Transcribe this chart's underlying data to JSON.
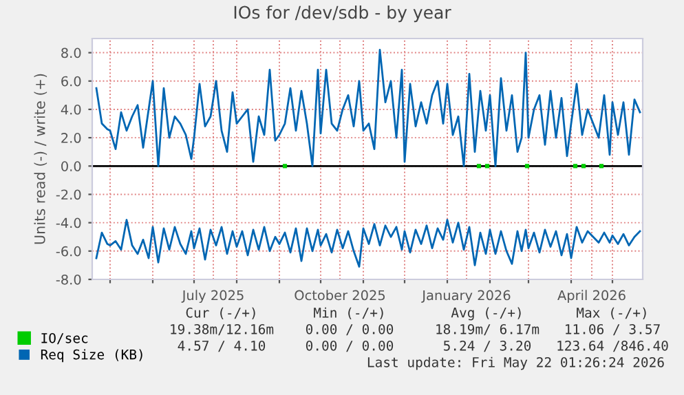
{
  "chart_data": {
    "type": "line",
    "title": "IOs for /dev/sdb - by year",
    "ylabel": "Units read (-) / write (+)",
    "x": [
      "2025-04-21",
      "2025-04-25",
      "2025-04-29",
      "2025-05-01",
      "2025-05-05",
      "2025-05-09",
      "2025-05-13",
      "2025-05-17",
      "2025-05-21",
      "2025-05-25",
      "2025-05-29",
      "2025-06-01",
      "2025-06-05",
      "2025-06-09",
      "2025-06-13",
      "2025-06-17",
      "2025-06-21",
      "2025-06-25",
      "2025-06-29",
      "2025-07-01",
      "2025-07-05",
      "2025-07-09",
      "2025-07-13",
      "2025-07-17",
      "2025-07-21",
      "2025-07-25",
      "2025-07-29",
      "2025-08-01",
      "2025-08-05",
      "2025-08-09",
      "2025-08-13",
      "2025-08-17",
      "2025-08-21",
      "2025-08-25",
      "2025-08-29",
      "2025-09-01",
      "2025-09-05",
      "2025-09-09",
      "2025-09-13",
      "2025-09-17",
      "2025-09-21",
      "2025-09-25",
      "2025-09-29",
      "2025-10-01",
      "2025-10-05",
      "2025-10-09",
      "2025-10-13",
      "2025-10-17",
      "2025-10-21",
      "2025-10-25",
      "2025-10-29",
      "2025-11-01",
      "2025-11-05",
      "2025-11-09",
      "2025-11-13",
      "2025-11-17",
      "2025-11-21",
      "2025-11-25",
      "2025-11-29",
      "2025-12-01",
      "2025-12-05",
      "2025-12-09",
      "2025-12-13",
      "2025-12-17",
      "2025-12-21",
      "2025-12-25",
      "2025-12-29",
      "2026-01-01",
      "2026-01-05",
      "2026-01-09",
      "2026-01-13",
      "2026-01-17",
      "2026-01-21",
      "2026-01-25",
      "2026-01-29",
      "2026-02-01",
      "2026-02-05",
      "2026-02-09",
      "2026-02-13",
      "2026-02-17",
      "2026-02-21",
      "2026-02-24",
      "2026-02-27",
      "2026-03-01",
      "2026-03-05",
      "2026-03-09",
      "2026-03-13",
      "2026-03-17",
      "2026-03-21",
      "2026-03-25",
      "2026-03-29",
      "2026-04-01",
      "2026-04-05",
      "2026-04-09",
      "2026-04-13",
      "2026-04-17",
      "2026-04-21",
      "2026-04-25",
      "2026-04-29",
      "2026-05-01",
      "2026-05-05",
      "2026-05-09",
      "2026-05-13",
      "2026-05-17",
      "2026-05-21"
    ],
    "series": [
      {
        "name": "IO/sec",
        "color": "#00cc00",
        "type": "scatter",
        "marker": "square",
        "x": [
          "2025-09-05",
          "2026-01-24",
          "2026-01-30",
          "2026-02-28",
          "2026-04-04",
          "2026-04-10",
          "2026-04-23"
        ],
        "values": [
          0,
          0,
          0,
          0,
          0,
          0,
          0
        ]
      },
      {
        "name": "Req Size (KB)",
        "color": "#0066b3",
        "values": [
          5.5,
          3.0,
          2.6,
          2.5,
          1.2,
          3.8,
          2.5,
          3.5,
          4.3,
          1.3,
          4.0,
          6.0,
          0.0,
          5.5,
          2.0,
          3.5,
          3.0,
          2.2,
          0.5,
          2.0,
          5.8,
          2.8,
          3.5,
          6.0,
          2.5,
          1.0,
          5.2,
          3.0,
          3.5,
          4.0,
          0.3,
          3.5,
          2.2,
          6.8,
          1.8,
          2.2,
          3.0,
          5.5,
          2.5,
          5.3,
          3.0,
          0.0,
          6.8,
          2.3,
          6.8,
          3.0,
          2.5,
          4.0,
          5.0,
          2.8,
          6.0,
          2.5,
          3.0,
          1.2,
          8.2,
          4.5,
          6.0,
          2.0,
          6.8,
          0.3,
          5.8,
          2.8,
          4.5,
          3.0,
          5.0,
          6.0,
          3.0,
          5.8,
          2.2,
          3.5,
          0.0,
          6.5,
          1.0,
          5.3,
          2.5,
          5.0,
          0.0,
          6.2,
          2.5,
          5.0,
          1.0,
          2.0,
          8.0,
          2.0,
          4.0,
          5.0,
          1.5,
          5.3,
          2.0,
          4.8,
          0.7,
          3.0,
          5.8,
          2.2,
          4.0,
          3.0,
          2.0,
          5.0,
          0.8,
          4.5,
          2.2,
          4.5,
          0.8,
          4.7,
          3.8
        ]
      },
      {
        "color": "#0066b3",
        "values": [
          -6.5,
          -4.7,
          -5.5,
          -5.6,
          -5.3,
          -5.9,
          -3.8,
          -5.6,
          -6.2,
          -5.2,
          -6.5,
          -4.3,
          -6.8,
          -4.4,
          -5.9,
          -4.3,
          -5.5,
          -6.2,
          -4.6,
          -5.8,
          -4.4,
          -6.6,
          -4.5,
          -5.6,
          -4.3,
          -6.2,
          -4.6,
          -5.7,
          -4.6,
          -6.3,
          -4.5,
          -5.9,
          -4.3,
          -6.0,
          -5.0,
          -5.5,
          -4.7,
          -6.1,
          -4.4,
          -6.7,
          -4.4,
          -6.0,
          -4.5,
          -5.6,
          -4.8,
          -6.1,
          -4.5,
          -5.8,
          -4.6,
          -6.0,
          -7.1,
          -4.4,
          -5.5,
          -4.1,
          -5.6,
          -4.2,
          -5.0,
          -4.3,
          -5.9,
          -4.6,
          -6.1,
          -4.5,
          -5.5,
          -4.2,
          -5.8,
          -4.4,
          -5.2,
          -3.8,
          -5.4,
          -4.0,
          -5.9,
          -4.3,
          -7.0,
          -4.7,
          -6.2,
          -4.5,
          -6.2,
          -4.6,
          -6.0,
          -6.9,
          -4.6,
          -6.0,
          -4.5,
          -5.8,
          -4.7,
          -6.1,
          -4.5,
          -5.7,
          -4.6,
          -6.3,
          -4.8,
          -6.5,
          -4.3,
          -5.4,
          -4.6,
          -5.0,
          -5.4,
          -4.7,
          -5.4,
          -4.9,
          -5.5,
          -4.8,
          -5.6,
          -5.0,
          -4.6
        ]
      }
    ],
    "xlim": [
      "2025-04-18",
      "2026-05-23"
    ],
    "xticks": [
      {
        "value": "2025-05-01",
        "label": null
      },
      {
        "value": "2025-06-01",
        "label": null
      },
      {
        "value": "2025-07-01",
        "label": null
      },
      {
        "value": "2025-07-15",
        "label": "July 2025"
      },
      {
        "value": "2025-08-01",
        "label": null
      },
      {
        "value": "2025-09-01",
        "label": null
      },
      {
        "value": "2025-10-01",
        "label": null
      },
      {
        "value": "2025-10-15",
        "label": "October 2025"
      },
      {
        "value": "2025-11-01",
        "label": null
      },
      {
        "value": "2025-12-01",
        "label": null
      },
      {
        "value": "2026-01-01",
        "label": null
      },
      {
        "value": "2026-01-15",
        "label": "January 2026"
      },
      {
        "value": "2026-02-01",
        "label": null
      },
      {
        "value": "2026-03-01",
        "label": null
      },
      {
        "value": "2026-04-01",
        "label": null
      },
      {
        "value": "2026-04-16",
        "label": "April 2026"
      },
      {
        "value": "2026-05-01",
        "label": null
      }
    ],
    "ylim": [
      -8,
      9
    ],
    "yticks": [
      {
        "value": -8,
        "label": "-8.0"
      },
      {
        "value": -6,
        "label": "-6.0"
      },
      {
        "value": -4,
        "label": "-4.0"
      },
      {
        "value": -2,
        "label": "-2.0"
      },
      {
        "value": 0,
        "label": "0.0"
      },
      {
        "value": 2,
        "label": "2.0"
      },
      {
        "value": 4,
        "label": "4.0"
      },
      {
        "value": 6,
        "label": "6.0"
      },
      {
        "value": 8,
        "label": "8.0"
      }
    ],
    "ref_lines": [
      {
        "axis": "y",
        "value": 0,
        "color": "#000000"
      }
    ],
    "grid": true,
    "legend": "bottom",
    "marker": "none",
    "line_style": "solid",
    "annotations": [
      "Cur (-/+)",
      "Min (-/+)",
      "Avg (-/+)",
      "Max (-/+)",
      "19.38m/12.16m",
      "0.00 / 0.00",
      "18.19m/ 6.17m",
      "11.06 / 3.57",
      "4.57 / 4.10",
      "0.00 / 0.00",
      "5.24 / 3.20",
      "123.64 /846.40",
      "Last update: Fri May 22 01:26:24 2026"
    ]
  }
}
